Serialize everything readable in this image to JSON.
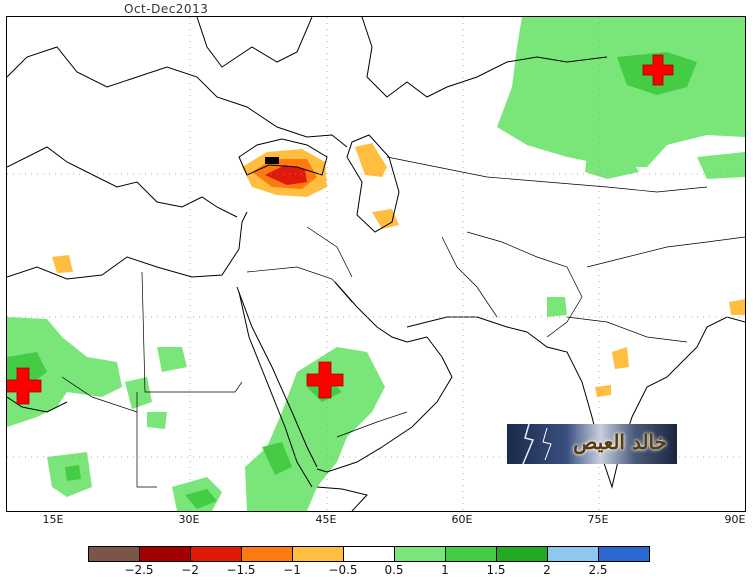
{
  "title": "Oct-Dec2013",
  "x_axis_labels": [
    "15E",
    "30E",
    "45E",
    "60E",
    "75E",
    "90E"
  ],
  "colorbar": {
    "ticks": [
      "−2.5",
      "−2",
      "−1.5",
      "−1",
      "−0.5",
      "0.5",
      "1",
      "1.5",
      "2",
      "2.5"
    ],
    "colors": [
      "#7a5548",
      "#a40000",
      "#e01a0a",
      "#ff7a10",
      "#ffbe40",
      "#ffffff",
      "#7ae67a",
      "#44cc44",
      "#22aa22",
      "#8ec8f0",
      "#2a6ad0"
    ]
  },
  "markers": [
    "plus",
    "plus",
    "plus"
  ],
  "logo_text": "خالد العيص",
  "colors": {
    "positive": "#7ae67a",
    "positive_strong": "#44cc44",
    "negative": "#ffbe40",
    "negative_strong": "#e01a0a"
  }
}
